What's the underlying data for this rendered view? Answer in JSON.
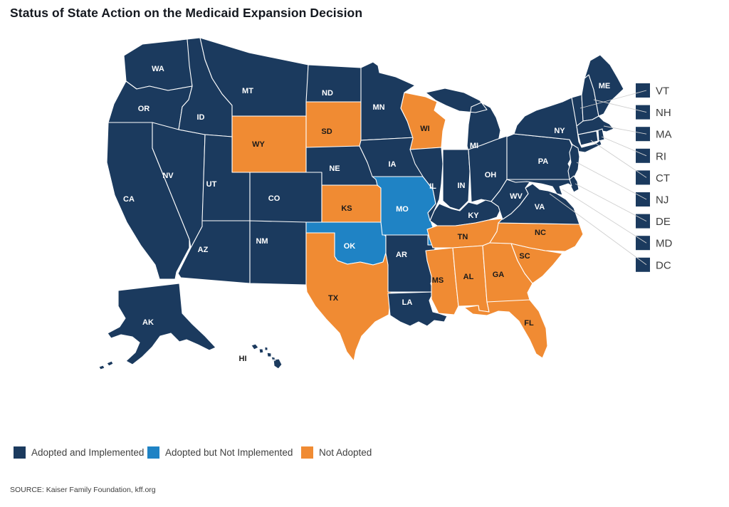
{
  "title": "Status of State Action on the Medicaid Expansion Decision",
  "source": "SOURCE: Kaiser Family Foundation, kff.org",
  "legend": {
    "items": [
      {
        "label": "Adopted and Implemented",
        "status": "adopted_implemented",
        "color": "#1B3A5E"
      },
      {
        "label": "Adopted but Not Implemented",
        "status": "adopted_not_implemented",
        "color": "#1F83C5"
      },
      {
        "label": "Not Adopted",
        "status": "not_adopted",
        "color": "#F08B33"
      }
    ]
  },
  "map": {
    "label_colors": {
      "adopted_implemented": "#ffffff",
      "adopted_not_implemented": "#ffffff",
      "not_adopted": "#1a1a1a"
    },
    "border_color": "#ffffff",
    "leader_line_color": "#cfcfcf",
    "small_state_list": [
      "VT",
      "NH",
      "MA",
      "RI",
      "CT",
      "NJ",
      "DE",
      "MD",
      "DC"
    ],
    "states": [
      {
        "code": "WA",
        "status": "adopted_implemented"
      },
      {
        "code": "OR",
        "status": "adopted_implemented"
      },
      {
        "code": "CA",
        "status": "adopted_implemented"
      },
      {
        "code": "NV",
        "status": "adopted_implemented"
      },
      {
        "code": "ID",
        "status": "adopted_implemented"
      },
      {
        "code": "MT",
        "status": "adopted_implemented"
      },
      {
        "code": "WY",
        "status": "not_adopted"
      },
      {
        "code": "UT",
        "status": "adopted_implemented"
      },
      {
        "code": "CO",
        "status": "adopted_implemented"
      },
      {
        "code": "AZ",
        "status": "adopted_implemented"
      },
      {
        "code": "NM",
        "status": "adopted_implemented"
      },
      {
        "code": "ND",
        "status": "adopted_implemented"
      },
      {
        "code": "SD",
        "status": "not_adopted"
      },
      {
        "code": "NE",
        "status": "adopted_implemented"
      },
      {
        "code": "KS",
        "status": "not_adopted"
      },
      {
        "code": "OK",
        "status": "adopted_not_implemented"
      },
      {
        "code": "TX",
        "status": "not_adopted"
      },
      {
        "code": "MN",
        "status": "adopted_implemented"
      },
      {
        "code": "IA",
        "status": "adopted_implemented"
      },
      {
        "code": "MO",
        "status": "adopted_not_implemented"
      },
      {
        "code": "AR",
        "status": "adopted_implemented"
      },
      {
        "code": "LA",
        "status": "adopted_implemented"
      },
      {
        "code": "WI",
        "status": "not_adopted"
      },
      {
        "code": "IL",
        "status": "adopted_implemented"
      },
      {
        "code": "MI",
        "status": "adopted_implemented"
      },
      {
        "code": "IN",
        "status": "adopted_implemented"
      },
      {
        "code": "OH",
        "status": "adopted_implemented"
      },
      {
        "code": "KY",
        "status": "adopted_implemented"
      },
      {
        "code": "TN",
        "status": "not_adopted"
      },
      {
        "code": "MS",
        "status": "not_adopted"
      },
      {
        "code": "AL",
        "status": "not_adopted"
      },
      {
        "code": "GA",
        "status": "not_adopted"
      },
      {
        "code": "FL",
        "status": "not_adopted"
      },
      {
        "code": "SC",
        "status": "not_adopted"
      },
      {
        "code": "NC",
        "status": "not_adopted"
      },
      {
        "code": "VA",
        "status": "adopted_implemented"
      },
      {
        "code": "WV",
        "status": "adopted_implemented"
      },
      {
        "code": "PA",
        "status": "adopted_implemented"
      },
      {
        "code": "NY",
        "status": "adopted_implemented"
      },
      {
        "code": "NJ",
        "status": "adopted_implemented"
      },
      {
        "code": "DE",
        "status": "adopted_implemented"
      },
      {
        "code": "MD",
        "status": "adopted_implemented"
      },
      {
        "code": "DC",
        "status": "adopted_implemented"
      },
      {
        "code": "VT",
        "status": "adopted_implemented"
      },
      {
        "code": "NH",
        "status": "adopted_implemented"
      },
      {
        "code": "MA",
        "status": "adopted_implemented"
      },
      {
        "code": "RI",
        "status": "adopted_implemented"
      },
      {
        "code": "CT",
        "status": "adopted_implemented"
      },
      {
        "code": "ME",
        "status": "adopted_implemented"
      },
      {
        "code": "AK",
        "status": "adopted_implemented"
      },
      {
        "code": "HI",
        "status": "adopted_implemented"
      }
    ]
  }
}
